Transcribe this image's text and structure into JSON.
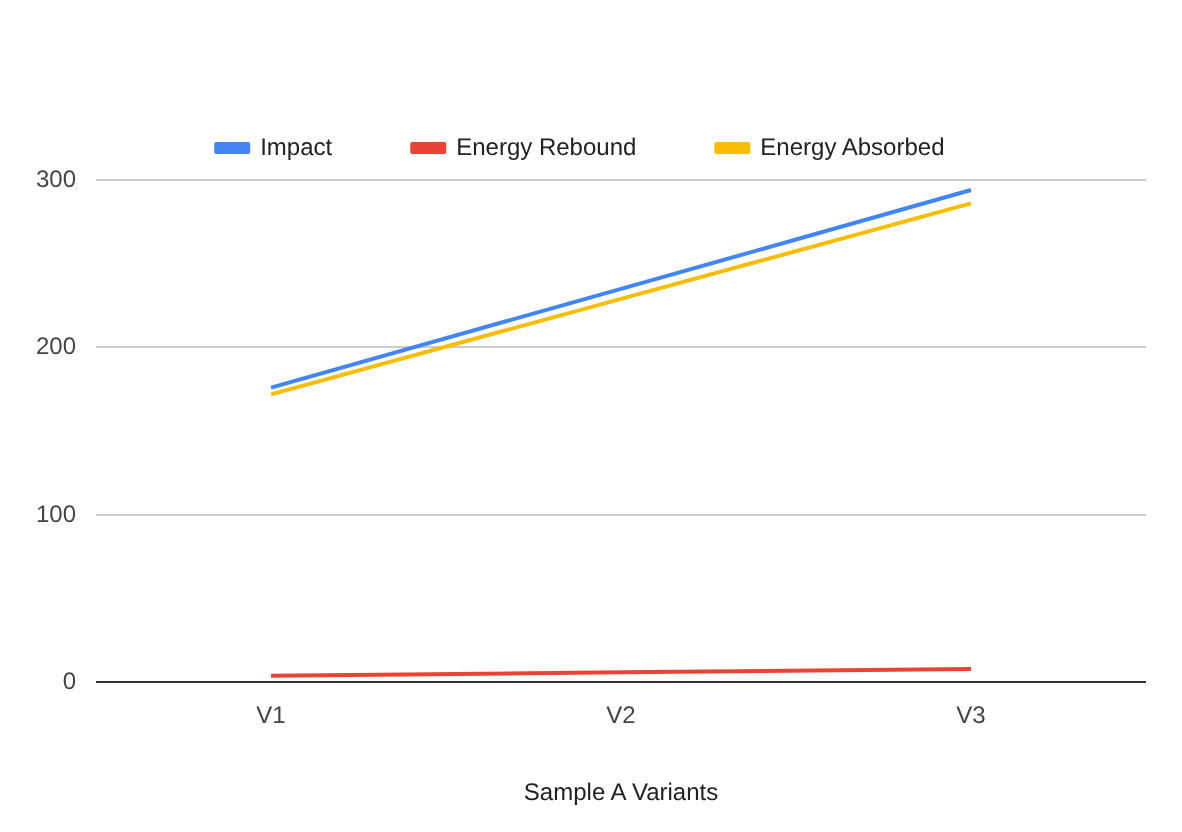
{
  "chart_data": {
    "type": "line",
    "xlabel": "Sample A Variants",
    "categories": [
      "V1",
      "V2",
      "V3"
    ],
    "series": [
      {
        "name": "Impact",
        "color": "#4285f4",
        "values": [
          176,
          235,
          294
        ]
      },
      {
        "name": "Energy Rebound",
        "color": "#ea4335",
        "values": [
          4,
          6,
          8
        ]
      },
      {
        "name": "Energy Absorbed",
        "color": "#fbbc04",
        "values": [
          172,
          229,
          286
        ]
      }
    ],
    "ylim": [
      0,
      300
    ],
    "yticks": [
      0,
      100,
      200,
      300
    ],
    "grid": "y",
    "legend": "top",
    "marker": "none",
    "line_style": "solid"
  }
}
